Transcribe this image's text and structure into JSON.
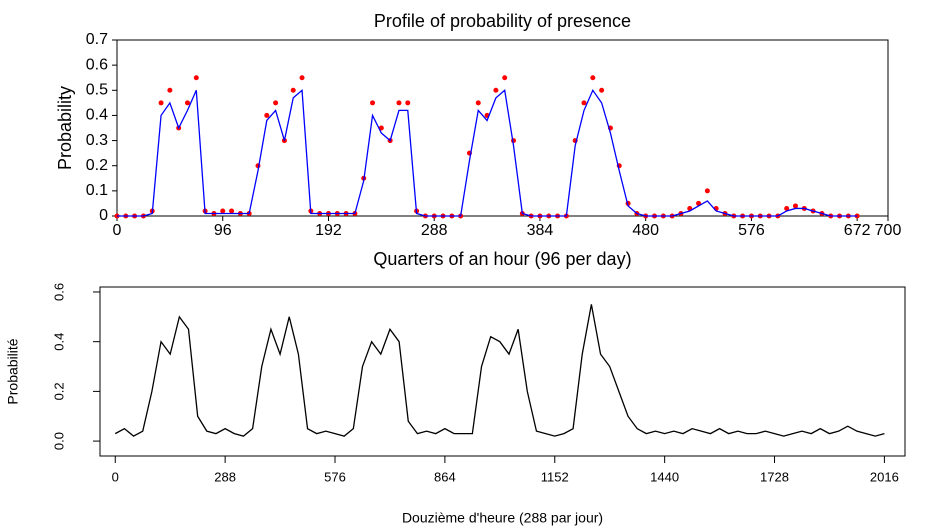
{
  "chart_data": [
    {
      "type": "line",
      "title": "Profile of probability of presence",
      "xlabel": "Quarters of an hour (96 per day)",
      "ylabel": "Probability",
      "xlim": [
        0,
        700
      ],
      "ylim": [
        0,
        0.7
      ],
      "xticks": [
        0,
        96,
        192,
        288,
        384,
        480,
        576,
        672,
        700
      ],
      "yticks": [
        0,
        0.1,
        0.2,
        0.3,
        0.4,
        0.5,
        0.6,
        0.7
      ],
      "x": [
        0,
        8,
        16,
        24,
        32,
        40,
        48,
        56,
        64,
        72,
        80,
        88,
        96,
        104,
        112,
        120,
        128,
        136,
        144,
        152,
        160,
        168,
        176,
        184,
        192,
        200,
        208,
        216,
        224,
        232,
        240,
        248,
        256,
        264,
        272,
        280,
        288,
        296,
        304,
        312,
        320,
        328,
        336,
        344,
        352,
        360,
        368,
        376,
        384,
        392,
        400,
        408,
        416,
        424,
        432,
        440,
        448,
        456,
        464,
        472,
        480,
        488,
        496,
        504,
        512,
        520,
        528,
        536,
        544,
        552,
        560,
        568,
        576,
        584,
        592,
        600,
        608,
        616,
        624,
        632,
        640,
        648,
        656,
        664,
        672
      ],
      "series": [
        {
          "color": "#ff0000",
          "marker": true,
          "values": [
            0,
            0,
            0,
            0,
            0.02,
            0.45,
            0.5,
            0.35,
            0.45,
            0.55,
            0.02,
            0.01,
            0.02,
            0.02,
            0.01,
            0.01,
            0.2,
            0.4,
            0.45,
            0.3,
            0.5,
            0.55,
            0.02,
            0.01,
            0.01,
            0.01,
            0.01,
            0.01,
            0.15,
            0.45,
            0.35,
            0.3,
            0.45,
            0.45,
            0.02,
            0,
            0,
            0,
            0,
            0,
            0.25,
            0.45,
            0.4,
            0.5,
            0.55,
            0.3,
            0.01,
            0,
            0,
            0,
            0,
            0,
            0.3,
            0.45,
            0.55,
            0.5,
            0.35,
            0.2,
            0.05,
            0.01,
            0,
            0,
            0,
            0,
            0.01,
            0.03,
            0.05,
            0.1,
            0.03,
            0.01,
            0,
            0,
            0,
            0,
            0,
            0,
            0.03,
            0.04,
            0.03,
            0.02,
            0.01,
            0,
            0,
            0,
            0
          ]
        },
        {
          "color": "#0000ff",
          "marker": false,
          "values": [
            0,
            0,
            0,
            0,
            0.01,
            0.4,
            0.45,
            0.35,
            0.42,
            0.5,
            0.01,
            0.01,
            0.01,
            0.01,
            0.01,
            0.01,
            0.18,
            0.38,
            0.42,
            0.3,
            0.47,
            0.5,
            0.01,
            0.01,
            0.01,
            0.01,
            0.01,
            0.01,
            0.14,
            0.4,
            0.33,
            0.3,
            0.42,
            0.42,
            0.01,
            0,
            0,
            0,
            0,
            0,
            0.22,
            0.42,
            0.38,
            0.47,
            0.5,
            0.28,
            0.01,
            0,
            0,
            0,
            0,
            0,
            0.28,
            0.42,
            0.5,
            0.45,
            0.33,
            0.18,
            0.04,
            0.01,
            0,
            0,
            0,
            0,
            0.01,
            0.02,
            0.04,
            0.06,
            0.02,
            0.01,
            0,
            0,
            0,
            0,
            0,
            0,
            0.02,
            0.03,
            0.03,
            0.02,
            0.01,
            0,
            0,
            0,
            0
          ]
        }
      ]
    },
    {
      "type": "line",
      "xlabel": "Douzième d'heure (288 par jour)",
      "ylabel": "Probabilité",
      "xlim": [
        -40,
        2070
      ],
      "ylim": [
        -0.06,
        0.62
      ],
      "xticks": [
        0,
        288,
        576,
        864,
        1152,
        1440,
        1728,
        2016
      ],
      "yticks": [
        {
          "value": 0,
          "label": "0.0"
        },
        0.2,
        0.4,
        0.6
      ],
      "x": [
        0,
        24,
        48,
        72,
        96,
        120,
        144,
        168,
        192,
        216,
        240,
        264,
        288,
        312,
        336,
        360,
        384,
        408,
        432,
        456,
        480,
        504,
        528,
        552,
        576,
        600,
        624,
        648,
        672,
        696,
        720,
        744,
        768,
        792,
        816,
        840,
        864,
        888,
        912,
        936,
        960,
        984,
        1008,
        1032,
        1056,
        1080,
        1104,
        1128,
        1152,
        1176,
        1200,
        1224,
        1248,
        1272,
        1296,
        1320,
        1344,
        1368,
        1392,
        1416,
        1440,
        1464,
        1488,
        1512,
        1536,
        1560,
        1584,
        1608,
        1632,
        1656,
        1680,
        1704,
        1728,
        1752,
        1776,
        1800,
        1824,
        1848,
        1872,
        1896,
        1920,
        1944,
        1968,
        1992,
        2016
      ],
      "series": [
        {
          "color": "#000000",
          "marker": false,
          "values": [
            0.03,
            0.05,
            0.02,
            0.04,
            0.2,
            0.4,
            0.35,
            0.5,
            0.45,
            0.1,
            0.04,
            0.03,
            0.05,
            0.03,
            0.02,
            0.05,
            0.3,
            0.45,
            0.35,
            0.5,
            0.35,
            0.05,
            0.03,
            0.04,
            0.03,
            0.02,
            0.05,
            0.3,
            0.4,
            0.35,
            0.45,
            0.4,
            0.08,
            0.03,
            0.04,
            0.03,
            0.05,
            0.03,
            0.03,
            0.03,
            0.3,
            0.42,
            0.4,
            0.35,
            0.45,
            0.2,
            0.04,
            0.03,
            0.02,
            0.03,
            0.05,
            0.35,
            0.55,
            0.35,
            0.3,
            0.2,
            0.1,
            0.05,
            0.03,
            0.04,
            0.03,
            0.04,
            0.03,
            0.05,
            0.04,
            0.03,
            0.05,
            0.03,
            0.04,
            0.03,
            0.03,
            0.04,
            0.03,
            0.02,
            0.03,
            0.04,
            0.03,
            0.05,
            0.03,
            0.04,
            0.06,
            0.04,
            0.03,
            0.02,
            0.03
          ]
        }
      ]
    }
  ]
}
